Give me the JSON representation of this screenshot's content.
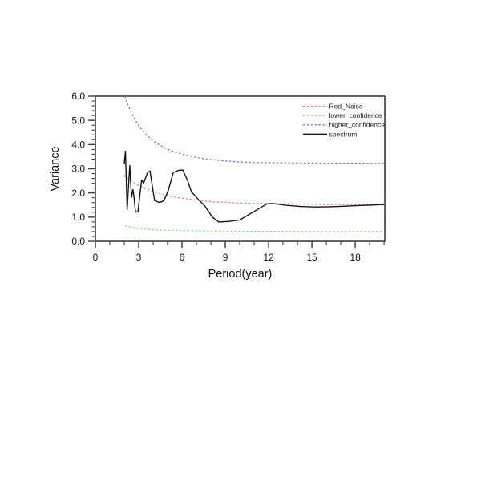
{
  "chart_data": {
    "type": "line",
    "title": "",
    "xlabel": "Period(year)",
    "ylabel": "Variance",
    "xlim": [
      0,
      20.05
    ],
    "ylim": [
      0,
      6
    ],
    "grid": false,
    "legend_position": "top-right-inside",
    "axis_color": "#3c3c3c",
    "x_major_ticks": {
      "values": [
        0,
        3,
        6,
        9,
        12,
        15,
        18
      ],
      "labels": [
        "0",
        "3",
        "6",
        "9",
        "12",
        "15",
        "18"
      ]
    },
    "x_minor_step": 1,
    "y_major_ticks": {
      "values": [
        0,
        1,
        2,
        3,
        4,
        5,
        6
      ],
      "labels": [
        "0.0",
        "1.0",
        "2.0",
        "3.0",
        "4.0",
        "5.0",
        "6.0"
      ]
    },
    "y_minor_step": 0.2,
    "series": [
      {
        "name": "Red_Noise",
        "color": "#e87878",
        "dash": true,
        "points": [
          [
            2.0,
            2.72
          ],
          [
            2.5,
            2.48
          ],
          [
            3.0,
            2.3
          ],
          [
            3.5,
            2.17
          ],
          [
            4.0,
            2.06
          ],
          [
            4.5,
            1.97
          ],
          [
            5.0,
            1.89
          ],
          [
            5.5,
            1.83
          ],
          [
            6.0,
            1.78
          ],
          [
            6.5,
            1.74
          ],
          [
            7.0,
            1.7
          ],
          [
            7.5,
            1.67
          ],
          [
            8.0,
            1.64
          ],
          [
            8.5,
            1.62
          ],
          [
            9.0,
            1.61
          ],
          [
            9.5,
            1.59
          ],
          [
            10.0,
            1.58
          ],
          [
            11.0,
            1.57
          ],
          [
            12.0,
            1.56
          ],
          [
            13.0,
            1.55
          ],
          [
            14.0,
            1.54
          ],
          [
            15.0,
            1.53
          ],
          [
            16.0,
            1.52
          ],
          [
            17.0,
            1.52
          ],
          [
            18.0,
            1.51
          ],
          [
            19.0,
            1.51
          ],
          [
            20.0,
            1.5
          ]
        ]
      },
      {
        "name": "lower_confidence",
        "color": "#7bd87b",
        "dash": true,
        "points": [
          [
            2.05,
            0.64
          ],
          [
            2.5,
            0.58
          ],
          [
            3.0,
            0.53
          ],
          [
            3.5,
            0.5
          ],
          [
            4.0,
            0.48
          ],
          [
            4.5,
            0.46
          ],
          [
            5.0,
            0.45
          ],
          [
            6.0,
            0.44
          ],
          [
            7.0,
            0.43
          ],
          [
            8.0,
            0.42
          ],
          [
            9.0,
            0.42
          ],
          [
            10.0,
            0.41
          ],
          [
            12.0,
            0.41
          ],
          [
            14.0,
            0.4
          ],
          [
            16.0,
            0.4
          ],
          [
            18.0,
            0.4
          ],
          [
            20.0,
            0.4
          ]
        ]
      },
      {
        "name": "higher_confidence",
        "color": "#6a6ade",
        "dash": true,
        "points": [
          [
            2.05,
            6.0
          ],
          [
            2.2,
            5.72
          ],
          [
            2.5,
            5.3
          ],
          [
            2.8,
            4.98
          ],
          [
            3.0,
            4.78
          ],
          [
            3.5,
            4.42
          ],
          [
            4.0,
            4.15
          ],
          [
            4.5,
            3.96
          ],
          [
            5.0,
            3.81
          ],
          [
            5.5,
            3.7
          ],
          [
            6.0,
            3.61
          ],
          [
            6.5,
            3.53
          ],
          [
            7.0,
            3.47
          ],
          [
            7.5,
            3.42
          ],
          [
            8.0,
            3.38
          ],
          [
            9.0,
            3.32
          ],
          [
            10.0,
            3.28
          ],
          [
            11.0,
            3.26
          ],
          [
            12.0,
            3.25
          ],
          [
            14.0,
            3.24
          ],
          [
            16.0,
            3.23
          ],
          [
            18.0,
            3.23
          ],
          [
            20.0,
            3.22
          ]
        ]
      },
      {
        "name": "spectrum",
        "color": "#161616",
        "dash": false,
        "points": [
          [
            2.0,
            3.2
          ],
          [
            2.08,
            3.75
          ],
          [
            2.2,
            1.3
          ],
          [
            2.38,
            3.15
          ],
          [
            2.5,
            1.8
          ],
          [
            2.6,
            2.15
          ],
          [
            2.66,
            1.9
          ],
          [
            2.78,
            1.2
          ],
          [
            2.95,
            1.23
          ],
          [
            3.2,
            2.52
          ],
          [
            3.35,
            2.42
          ],
          [
            3.62,
            2.85
          ],
          [
            3.78,
            2.9
          ],
          [
            4.1,
            1.68
          ],
          [
            4.45,
            1.6
          ],
          [
            4.75,
            1.68
          ],
          [
            5.05,
            2.1
          ],
          [
            5.4,
            2.85
          ],
          [
            5.75,
            2.93
          ],
          [
            6.05,
            2.95
          ],
          [
            6.4,
            2.5
          ],
          [
            6.65,
            2.05
          ],
          [
            7.1,
            1.75
          ],
          [
            7.6,
            1.45
          ],
          [
            8.1,
            1.0
          ],
          [
            8.55,
            0.8
          ],
          [
            9.2,
            0.82
          ],
          [
            10.0,
            0.88
          ],
          [
            10.9,
            1.2
          ],
          [
            11.9,
            1.55
          ],
          [
            12.3,
            1.56
          ],
          [
            13.2,
            1.49
          ],
          [
            14.2,
            1.44
          ],
          [
            15.2,
            1.42
          ],
          [
            16.2,
            1.43
          ],
          [
            17.2,
            1.45
          ],
          [
            18.2,
            1.48
          ],
          [
            19.2,
            1.5
          ],
          [
            20.0,
            1.52
          ]
        ]
      }
    ]
  }
}
